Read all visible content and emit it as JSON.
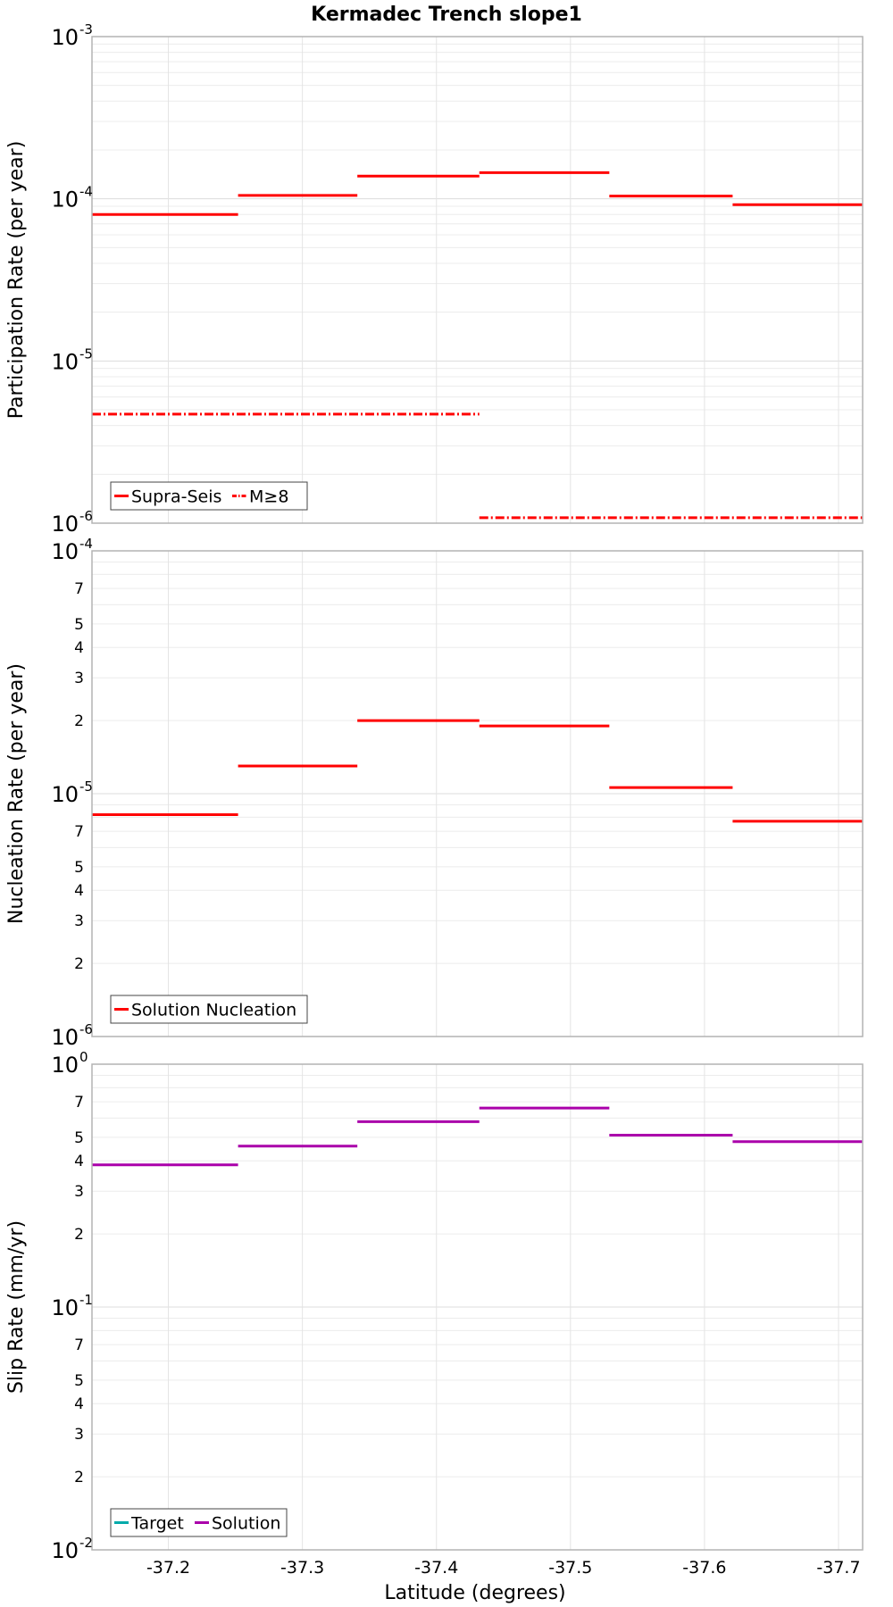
{
  "chart_data": {
    "type": "line",
    "title": "Kermadec Trench slope1",
    "xlabel": "Latitude (degrees)",
    "xlim": [
      -37.143,
      -37.718
    ],
    "xticks": [
      -37.2,
      -37.3,
      -37.4,
      -37.5,
      -37.6,
      -37.7
    ],
    "xtick_labels": [
      "-37.2",
      "-37.3",
      "-37.4",
      "-37.5",
      "-37.6",
      "-37.7"
    ],
    "panels": [
      {
        "id": "participation",
        "ylabel": "Participation Rate (per year)",
        "yscale": "log",
        "ylim": [
          1e-06,
          0.001
        ],
        "decade_ticks": [
          {
            "value": 1e-06,
            "base": "10",
            "exp": "-6"
          },
          {
            "value": 1e-05,
            "base": "10",
            "exp": "-5"
          },
          {
            "value": 0.0001,
            "base": "10",
            "exp": "-4"
          },
          {
            "value": 0.001,
            "base": "10",
            "exp": "-3"
          }
        ],
        "minor_tick_labels": [],
        "series": [
          {
            "name": "Supra-Seis",
            "color": "#ff0000",
            "style": "solid",
            "segments": [
              {
                "x0": -37.143,
                "x1": -37.252,
                "y": 8e-05
              },
              {
                "x0": -37.252,
                "x1": -37.341,
                "y": 0.000105
              },
              {
                "x0": -37.341,
                "x1": -37.432,
                "y": 0.000138
              },
              {
                "x0": -37.432,
                "x1": -37.529,
                "y": 0.000145
              },
              {
                "x0": -37.529,
                "x1": -37.621,
                "y": 0.000104
              },
              {
                "x0": -37.621,
                "x1": -37.718,
                "y": 9.2e-05
              }
            ]
          },
          {
            "name": "M≥8",
            "color": "#ff0000",
            "style": "dashdot",
            "segments": [
              {
                "x0": -37.143,
                "x1": -37.432,
                "y": 4.7e-06
              },
              {
                "x0": -37.432,
                "x1": -37.718,
                "y": 1.08e-06
              }
            ]
          }
        ]
      },
      {
        "id": "nucleation",
        "ylabel": "Nucleation Rate (per year)",
        "yscale": "log",
        "ylim": [
          1e-06,
          0.0001
        ],
        "decade_ticks": [
          {
            "value": 1e-06,
            "base": "10",
            "exp": "-6"
          },
          {
            "value": 1e-05,
            "base": "10",
            "exp": "-5"
          },
          {
            "value": 0.0001,
            "base": "10",
            "exp": "-4"
          }
        ],
        "minor_tick_labels": [
          {
            "value": 2e-06,
            "label": "2"
          },
          {
            "value": 3e-06,
            "label": "3"
          },
          {
            "value": 4e-06,
            "label": "4"
          },
          {
            "value": 5e-06,
            "label": "5"
          },
          {
            "value": 7e-06,
            "label": "7"
          },
          {
            "value": 2e-05,
            "label": "2"
          },
          {
            "value": 3e-05,
            "label": "3"
          },
          {
            "value": 4e-05,
            "label": "4"
          },
          {
            "value": 5e-05,
            "label": "5"
          },
          {
            "value": 7e-05,
            "label": "7"
          }
        ],
        "series": [
          {
            "name": "Solution Nucleation",
            "color": "#ff0000",
            "style": "solid",
            "segments": [
              {
                "x0": -37.143,
                "x1": -37.252,
                "y": 8.2e-06
              },
              {
                "x0": -37.252,
                "x1": -37.341,
                "y": 1.3e-05
              },
              {
                "x0": -37.341,
                "x1": -37.432,
                "y": 2e-05
              },
              {
                "x0": -37.432,
                "x1": -37.529,
                "y": 1.9e-05
              },
              {
                "x0": -37.529,
                "x1": -37.621,
                "y": 1.06e-05
              },
              {
                "x0": -37.621,
                "x1": -37.718,
                "y": 7.7e-06
              }
            ]
          }
        ]
      },
      {
        "id": "slip",
        "ylabel": "Slip Rate (mm/yr)",
        "yscale": "log",
        "ylim": [
          0.01,
          1
        ],
        "decade_ticks": [
          {
            "value": 0.01,
            "base": "10",
            "exp": "-2"
          },
          {
            "value": 0.1,
            "base": "10",
            "exp": "-1"
          },
          {
            "value": 1,
            "base": "10",
            "exp": "0"
          }
        ],
        "minor_tick_labels": [
          {
            "value": 0.02,
            "label": "2"
          },
          {
            "value": 0.03,
            "label": "3"
          },
          {
            "value": 0.04,
            "label": "4"
          },
          {
            "value": 0.05,
            "label": "5"
          },
          {
            "value": 0.07,
            "label": "7"
          },
          {
            "value": 0.2,
            "label": "2"
          },
          {
            "value": 0.3,
            "label": "3"
          },
          {
            "value": 0.4,
            "label": "4"
          },
          {
            "value": 0.5,
            "label": "5"
          },
          {
            "value": 0.7,
            "label": "7"
          }
        ],
        "series": [
          {
            "name": "Target",
            "color": "#00aaaa",
            "style": "solid",
            "segments": []
          },
          {
            "name": "Solution",
            "color": "#aa00aa",
            "style": "solid",
            "segments": [
              {
                "x0": -37.143,
                "x1": -37.252,
                "y": 0.385
              },
              {
                "x0": -37.252,
                "x1": -37.341,
                "y": 0.46
              },
              {
                "x0": -37.341,
                "x1": -37.432,
                "y": 0.58
              },
              {
                "x0": -37.432,
                "x1": -37.529,
                "y": 0.66
              },
              {
                "x0": -37.529,
                "x1": -37.621,
                "y": 0.51
              },
              {
                "x0": -37.621,
                "x1": -37.718,
                "y": 0.48
              }
            ]
          }
        ]
      }
    ]
  }
}
